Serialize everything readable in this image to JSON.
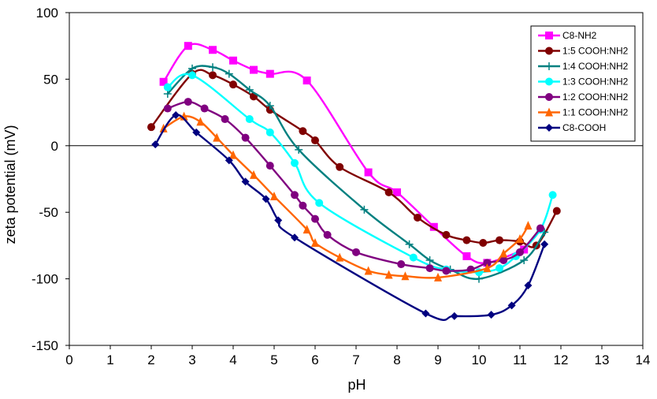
{
  "chart_data": {
    "type": "line",
    "title": "",
    "xlabel": "pH",
    "ylabel": "zeta potential (mV)",
    "xlim": [
      0,
      14
    ],
    "ylim": [
      -150,
      100
    ],
    "xticks": [
      0,
      1,
      2,
      3,
      4,
      5,
      6,
      7,
      8,
      9,
      10,
      11,
      12,
      13,
      14
    ],
    "yticks": [
      -150,
      -100,
      -50,
      0,
      50,
      100
    ],
    "grid": false,
    "legend_position": "top-right",
    "series": [
      {
        "name": "C8-NH2",
        "color": "#ff00ff",
        "marker": "square",
        "points": [
          [
            2.3,
            48
          ],
          [
            2.9,
            75
          ],
          [
            3.5,
            72
          ],
          [
            4.0,
            64
          ],
          [
            4.5,
            57
          ],
          [
            4.9,
            54
          ],
          [
            5.8,
            49
          ],
          [
            7.3,
            -20
          ],
          [
            8.0,
            -35
          ],
          [
            8.9,
            -61
          ],
          [
            9.7,
            -83
          ],
          [
            10.2,
            -88
          ],
          [
            11.1,
            -78
          ]
        ]
      },
      {
        "name": "1:5 COOH:NH2",
        "color": "#800000",
        "marker": "circle",
        "points": [
          [
            2.0,
            14
          ],
          [
            3.0,
            54
          ],
          [
            3.5,
            53
          ],
          [
            4.0,
            46
          ],
          [
            4.5,
            37
          ],
          [
            4.9,
            27
          ],
          [
            5.7,
            11
          ],
          [
            6.0,
            4
          ],
          [
            6.6,
            -16
          ],
          [
            7.8,
            -35
          ],
          [
            8.5,
            -54
          ],
          [
            9.2,
            -67
          ],
          [
            9.7,
            -71
          ],
          [
            10.1,
            -73
          ],
          [
            10.5,
            -71
          ],
          [
            11.0,
            -72
          ],
          [
            11.4,
            -75
          ],
          [
            11.9,
            -49
          ]
        ]
      },
      {
        "name": "1:4 COOH:NH2",
        "color": "#008080",
        "marker": "plus",
        "points": [
          [
            2.4,
            39
          ],
          [
            3.0,
            58
          ],
          [
            3.5,
            59
          ],
          [
            3.9,
            54
          ],
          [
            4.4,
            42
          ],
          [
            4.9,
            30
          ],
          [
            5.6,
            -3
          ],
          [
            7.2,
            -48
          ],
          [
            8.3,
            -74
          ],
          [
            8.8,
            -86
          ],
          [
            9.3,
            -93
          ],
          [
            10.0,
            -100
          ],
          [
            11.1,
            -86
          ],
          [
            11.6,
            -65
          ]
        ]
      },
      {
        "name": "1:3 COOH:NH2",
        "color": "#00ffff",
        "marker": "circle",
        "points": [
          [
            2.4,
            44
          ],
          [
            3.0,
            53
          ],
          [
            4.4,
            20
          ],
          [
            4.9,
            10
          ],
          [
            5.5,
            -13
          ],
          [
            6.1,
            -43
          ],
          [
            8.4,
            -84
          ],
          [
            9.2,
            -93
          ],
          [
            10.0,
            -95
          ],
          [
            10.5,
            -92
          ],
          [
            10.9,
            -83
          ],
          [
            11.5,
            -63
          ],
          [
            11.8,
            -37
          ]
        ]
      },
      {
        "name": "1:2 COOH:NH2",
        "color": "#800080",
        "marker": "circle",
        "points": [
          [
            2.4,
            28
          ],
          [
            2.9,
            33
          ],
          [
            3.3,
            28
          ],
          [
            3.8,
            20
          ],
          [
            4.3,
            6
          ],
          [
            4.9,
            -15
          ],
          [
            5.5,
            -37
          ],
          [
            5.7,
            -45
          ],
          [
            6.0,
            -55
          ],
          [
            6.3,
            -67
          ],
          [
            7.0,
            -80
          ],
          [
            8.1,
            -89
          ],
          [
            8.8,
            -92
          ],
          [
            9.2,
            -94
          ],
          [
            9.8,
            -93
          ],
          [
            10.2,
            -88
          ],
          [
            10.6,
            -86
          ],
          [
            11.0,
            -80
          ],
          [
            11.5,
            -62
          ]
        ]
      },
      {
        "name": "1:1 COOH:NH2",
        "color": "#ff6600",
        "marker": "triangle",
        "points": [
          [
            2.3,
            13
          ],
          [
            2.8,
            22
          ],
          [
            3.2,
            18
          ],
          [
            3.6,
            6
          ],
          [
            4.0,
            -7
          ],
          [
            4.5,
            -22
          ],
          [
            5.0,
            -38
          ],
          [
            5.8,
            -63
          ],
          [
            6.0,
            -73
          ],
          [
            6.6,
            -84
          ],
          [
            7.3,
            -94
          ],
          [
            7.8,
            -97
          ],
          [
            8.2,
            -98
          ],
          [
            9.0,
            -99
          ],
          [
            10.2,
            -92
          ],
          [
            10.6,
            -81
          ],
          [
            11.0,
            -70
          ],
          [
            11.2,
            -60
          ]
        ]
      },
      {
        "name": "C8-COOH",
        "color": "#000080",
        "marker": "diamond",
        "points": [
          [
            2.1,
            1
          ],
          [
            2.6,
            23
          ],
          [
            3.1,
            10
          ],
          [
            3.9,
            -11
          ],
          [
            4.3,
            -27
          ],
          [
            4.8,
            -40
          ],
          [
            5.1,
            -56
          ],
          [
            5.5,
            -69
          ],
          [
            8.7,
            -126
          ],
          [
            9.4,
            -128
          ],
          [
            10.3,
            -127
          ],
          [
            10.8,
            -120
          ],
          [
            11.2,
            -105
          ],
          [
            11.6,
            -74
          ]
        ]
      }
    ]
  }
}
